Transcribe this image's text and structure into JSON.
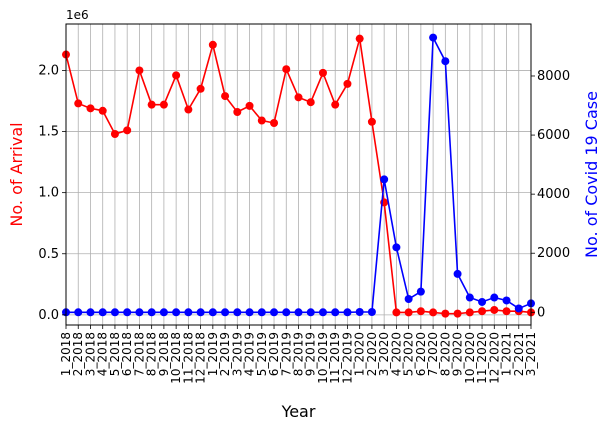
{
  "chart_data": {
    "type": "line",
    "xlabel": "Year",
    "ylabel_left": "No. of Arrival",
    "ylabel_right": "No. of Covid 19 Case",
    "left_offset_text": "1e6",
    "categories": [
      "1_2018",
      "2_2018",
      "3_2018",
      "4_2018",
      "5_2018",
      "6_2018",
      "7_2018",
      "8_2018",
      "9_2018",
      "10_2018",
      "11_2018",
      "12_2018",
      "1_2019",
      "2_2019",
      "3_2019",
      "4_2019",
      "5_2019",
      "6_2019",
      "7_2019",
      "8_2019",
      "9_2019",
      "10_2019",
      "11_2019",
      "12_2019",
      "1_2020",
      "2_2020",
      "3_2020",
      "4_2020",
      "5_2020",
      "6_2020",
      "7_2020",
      "8_2020",
      "9_2020",
      "10_2020",
      "11_2020",
      "12_2020",
      "1_2021",
      "2_2021",
      "3_2021"
    ],
    "series": [
      {
        "axis": "left",
        "color": "#ff0000",
        "values": [
          2130000,
          1730000,
          1690000,
          1670000,
          1480000,
          1510000,
          2000000,
          1720000,
          1720000,
          1960000,
          1680000,
          1850000,
          2210000,
          1790000,
          1660000,
          1710000,
          1590000,
          1570000,
          2010000,
          1780000,
          1740000,
          1980000,
          1720000,
          1890000,
          2260000,
          1580000,
          920000,
          20000,
          20000,
          30000,
          20000,
          10000,
          10000,
          20000,
          30000,
          40000,
          30000,
          30000,
          20000
        ]
      },
      {
        "axis": "right",
        "color": "#0000ff",
        "values": [
          0,
          0,
          0,
          0,
          0,
          0,
          0,
          0,
          0,
          0,
          0,
          0,
          0,
          0,
          0,
          0,
          0,
          0,
          0,
          0,
          0,
          0,
          0,
          0,
          10,
          10,
          4500,
          2200,
          450,
          700,
          9300,
          8500,
          1300,
          500,
          350,
          500,
          400,
          130,
          300
        ]
      }
    ],
    "ylim_left": [
      -83000,
      2380000
    ],
    "yticks_left": [
      0.0,
      0.5,
      1.0,
      1.5,
      2.0
    ],
    "ylim_right": [
      -430,
      9760
    ],
    "yticks_right": [
      0,
      2000,
      4000,
      6000,
      8000
    ],
    "grid": true
  }
}
